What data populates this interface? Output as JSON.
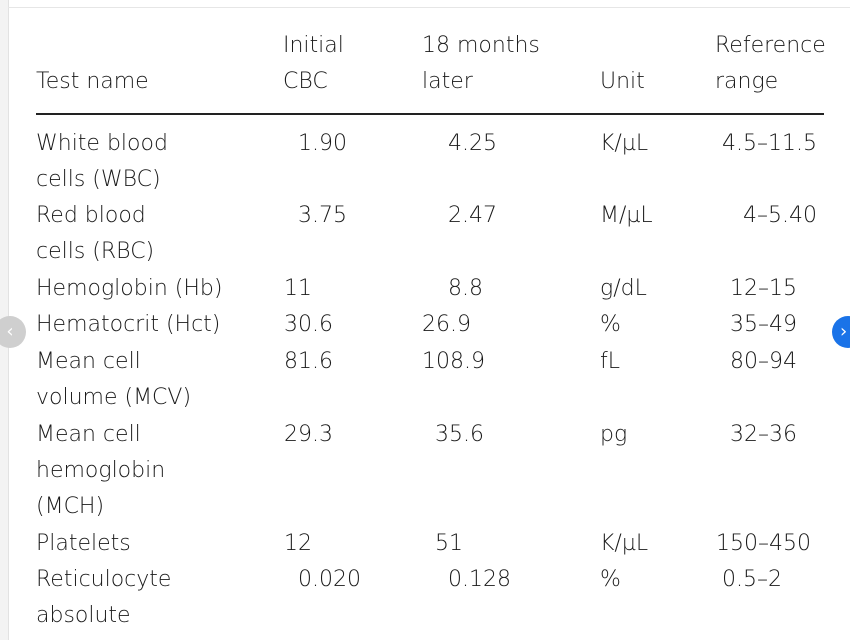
{
  "table": {
    "headers": {
      "test_name": "Test name",
      "initial": "Initial\nCBC",
      "later": "18 months\nlater",
      "unit": "Unit",
      "reference": "Reference\nrange"
    },
    "rows": [
      {
        "name": "White blood\n cells (WBC)",
        "initial": "1.90",
        "later": "4.25",
        "unit": "K/µL",
        "reference": "4.5–11.5"
      },
      {
        "name": "Red blood\n cells (RBC)",
        "initial": "3.75",
        "later": "2.47",
        "unit": "M/µL",
        "reference": "4–5.40"
      },
      {
        "name": "Hemoglobin (Hb)",
        "initial": "11",
        "later": "8.8",
        "unit": "g/dL",
        "reference": "12–15"
      },
      {
        "name": "Hematocrit (Hct)",
        "initial": "30.6",
        "later": "26.9",
        "unit": "%",
        "reference": "35–49"
      },
      {
        "name": "Mean cell\n volume (MCV)",
        "initial": "81.6",
        "later": "108.9",
        "unit": "fL",
        "reference": "80–94"
      },
      {
        "name": "Mean cell\n hemoglobin\n (MCH)",
        "initial": "29.3",
        "later": "35.6",
        "unit": "pg",
        "reference": "32–36"
      },
      {
        "name": "Platelets",
        "initial": "12",
        "later": "51",
        "unit": "K/µL",
        "reference": "150–450"
      },
      {
        "name": "Reticulocyte\n absolute",
        "initial": "0.020",
        "later": "0.128",
        "unit": "%",
        "reference": "0.5–2"
      }
    ]
  },
  "nav": {
    "prev_icon": "chevron-left-icon",
    "next_icon": "chevron-right-icon",
    "prev_glyph": "‹",
    "next_glyph": "›",
    "next_color": "#1a73e8"
  }
}
